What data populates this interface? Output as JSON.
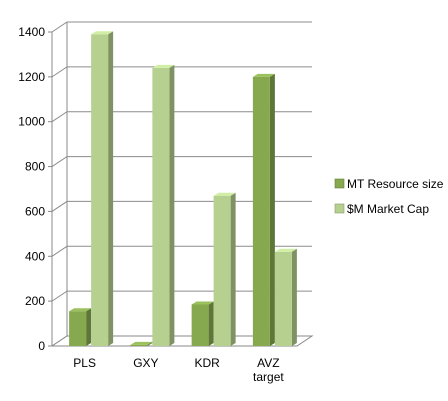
{
  "chart_data": {
    "type": "bar",
    "categories": [
      "PLS",
      "GXY",
      "KDR",
      "AVZ target"
    ],
    "series": [
      {
        "name": "MT Resource size",
        "values": [
          155,
          5,
          185,
          1200
        ],
        "color": "#86a84f"
      },
      {
        "name": "$M Market Cap",
        "values": [
          1390,
          1240,
          670,
          420
        ],
        "color": "#b6d08f"
      }
    ],
    "title": "",
    "xlabel": "",
    "ylabel": "",
    "ylim": [
      0,
      1400
    ],
    "yticks": [
      0,
      200,
      400,
      600,
      800,
      1000,
      1200,
      1400
    ],
    "grid": true,
    "style": "3d-clustered-column",
    "legend": "right"
  }
}
